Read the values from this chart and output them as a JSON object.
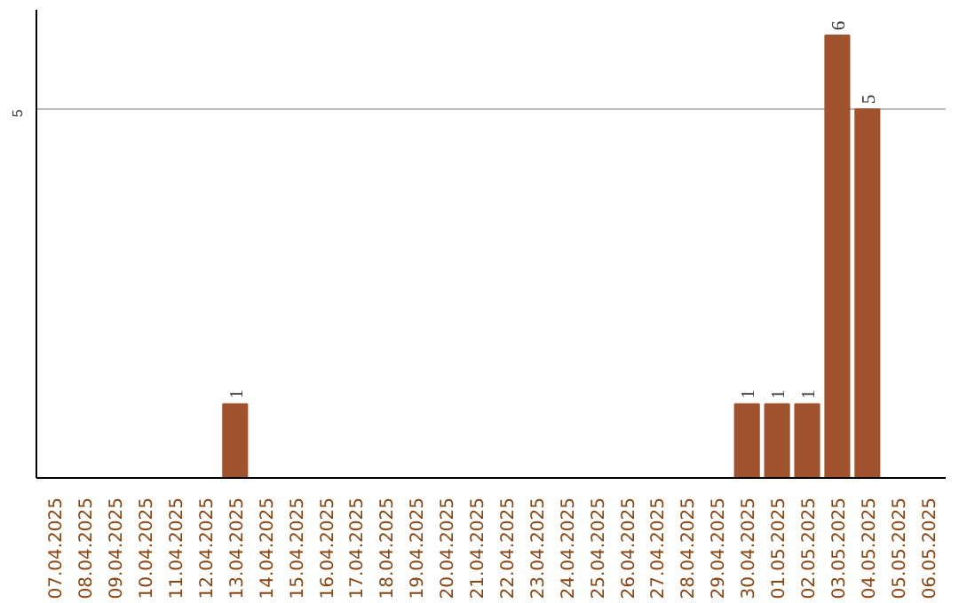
{
  "chart_data": {
    "type": "bar",
    "categories": [
      "07.04.2025",
      "08.04.2025",
      "09.04.2025",
      "10.04.2025",
      "11.04.2025",
      "12.04.2025",
      "13.04.2025",
      "14.04.2025",
      "15.04.2025",
      "16.04.2025",
      "17.04.2025",
      "18.04.2025",
      "19.04.2025",
      "20.04.2025",
      "21.04.2025",
      "22.04.2025",
      "23.04.2025",
      "24.04.2025",
      "25.04.2025",
      "26.04.2025",
      "27.04.2025",
      "28.04.2025",
      "29.04.2025",
      "30.04.2025",
      "01.05.2025",
      "02.05.2025",
      "03.05.2025",
      "04.05.2025",
      "05.05.2025",
      "06.05.2025"
    ],
    "values": [
      0,
      0,
      0,
      0,
      0,
      0,
      1,
      0,
      0,
      0,
      0,
      0,
      0,
      0,
      0,
      0,
      0,
      0,
      0,
      0,
      0,
      0,
      0,
      1,
      1,
      1,
      6,
      5,
      0,
      0
    ],
    "color": "#a0522d",
    "ylim": [
      0,
      6.35
    ],
    "yticks": [
      5
    ],
    "grid": "y",
    "value_labels": [
      null,
      null,
      null,
      null,
      null,
      null,
      "1",
      null,
      null,
      null,
      null,
      null,
      null,
      null,
      null,
      null,
      null,
      null,
      null,
      null,
      null,
      null,
      null,
      "1",
      "1",
      "1",
      "6",
      "5",
      null,
      null
    ]
  }
}
